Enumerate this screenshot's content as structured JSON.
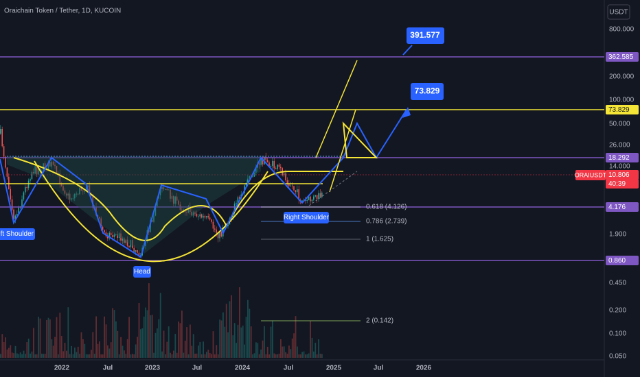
{
  "header": {
    "title": "Oraichain Token / Tether, 1D, KUCOIN",
    "currency": "USDT"
  },
  "price_axis": [
    "800.000",
    "200.000",
    "100.000",
    "50.000",
    "26.000",
    "14.000",
    "1.900",
    "0.450",
    "0.200",
    "0.100",
    "0.050"
  ],
  "price_tags": [
    {
      "label": "362.585",
      "color": "#7e57c2"
    },
    {
      "label": "73.829",
      "color": "#f5e536"
    },
    {
      "label": "18.292",
      "color": "#7e57c2"
    },
    {
      "label": "10.806",
      "color": "#f23645"
    },
    {
      "label": "40:39",
      "color": "#f23645"
    },
    {
      "label": "4.176",
      "color": "#7e57c2"
    },
    {
      "label": "0.860",
      "color": "#7e57c2"
    }
  ],
  "symbol_tag": "ORAIUSDT",
  "time_axis": [
    "2022",
    "Jul",
    "2023",
    "Jul",
    "2024",
    "Jul",
    "2025",
    "Jul",
    "2026"
  ],
  "targets": [
    "391.577",
    "73.829"
  ],
  "pattern_labels": [
    "eft Shoulder",
    "Head",
    "Right Shoulder"
  ],
  "fib_labels": [
    "0.618 (4.126)",
    "0.786 (2.739)",
    "1 (1.625)",
    "2 (0.142)"
  ]
}
